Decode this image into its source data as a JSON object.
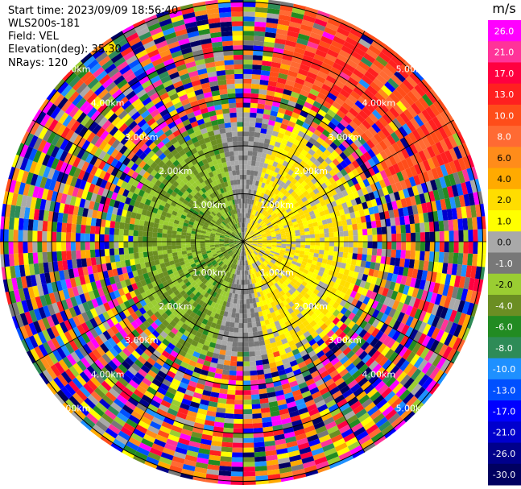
{
  "header": {
    "start_time": "Start time: 2023/09/09 18:56:40",
    "site": "WLS200s-181",
    "field": "Field: VEL",
    "elevation": "Elevation(deg): 35.30",
    "nrays": "NRays: 120"
  },
  "chart_data": {
    "type": "ppi-polar",
    "field": "VEL",
    "units": "m/s",
    "nrays": 120,
    "range_rings_km": [
      1,
      2,
      3,
      4,
      5
    ],
    "ring_labels": [
      "1.00km",
      "2.00km",
      "3.00km",
      "4.00km",
      "5.00km"
    ],
    "colorbar": {
      "title": "m/s",
      "ticks": [
        "26.0",
        "21.0",
        "17.0",
        "13.0",
        "10.0",
        "8.0",
        "6.0",
        "4.0",
        "2.0",
        "1.0",
        "0.0",
        "-1.0",
        "-2.0",
        "-4.0",
        "-6.0",
        "-8.0",
        "-10.0",
        "-13.0",
        "-17.0",
        "-21.0",
        "-26.0",
        "-30.0"
      ],
      "colors": [
        "#ff00ff",
        "#ff3399",
        "#ff0040",
        "#ff2020",
        "#ff4d1a",
        "#ff6a33",
        "#ff8c1a",
        "#ffaa00",
        "#ffdd00",
        "#ffff00",
        "#a9a9a9",
        "#787878",
        "#9acd32",
        "#6b8e23",
        "#228b22",
        "#2e8b57",
        "#1e90ff",
        "#0050ff",
        "#0000ff",
        "#0000cd",
        "#00008b",
        "#000060"
      ]
    }
  }
}
